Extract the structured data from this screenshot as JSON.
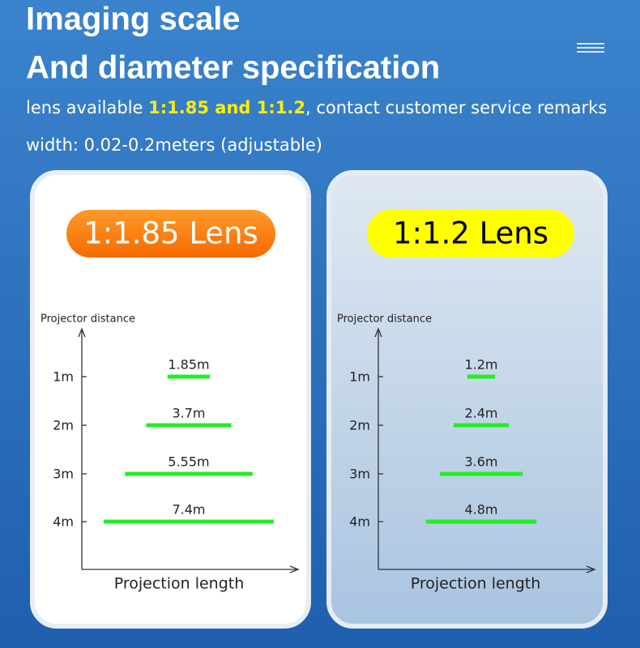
{
  "header": {
    "title_line1": "Imaging scale",
    "title_line2": "And diameter specification",
    "desc_before": "lens available",
    "desc_highlight": "1:1.85 and 1:1.2",
    "desc_after": ", contact customer service remarks",
    "desc_line2": "width: 0.02-0.2meters (adjustable)"
  },
  "chart_data": [
    {
      "type": "bar",
      "title": "1:1.85 Lens",
      "y_label": "Projector distance",
      "x_label": "Projection length",
      "categories": [
        "1m",
        "2m",
        "3m",
        "4m"
      ],
      "values": [
        1.85,
        3.7,
        5.55,
        7.4
      ],
      "value_labels": [
        "1.85m",
        "3.7m",
        "5.55m",
        "7.4m"
      ],
      "color": "#22ee22"
    },
    {
      "type": "bar",
      "title": "1:1.2 Lens",
      "y_label": "Projector distance",
      "x_label": "Projection length",
      "categories": [
        "1m",
        "2m",
        "3m",
        "4m"
      ],
      "values": [
        1.2,
        2.4,
        3.6,
        4.8
      ],
      "value_labels": [
        "1.2m",
        "2.4m",
        "3.6m",
        "4.8m"
      ],
      "color": "#22ee22"
    }
  ]
}
